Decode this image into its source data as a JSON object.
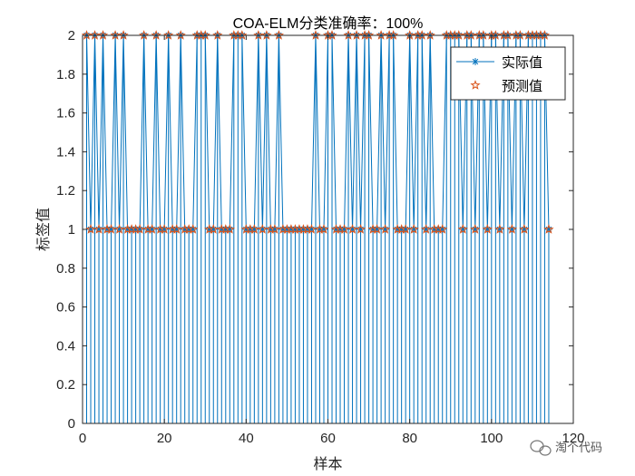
{
  "chart_data": {
    "type": "line",
    "title": "COA-ELM分类准确率：100%",
    "xlabel": "样本",
    "ylabel": "标签值",
    "xlim": [
      0,
      120
    ],
    "ylim": [
      0,
      2
    ],
    "xticks": [
      "0",
      "20",
      "40",
      "60",
      "80",
      "100",
      "120"
    ],
    "yticks": [
      "0",
      "0.2",
      "0.4",
      "0.6",
      "0.8",
      "1",
      "1.2",
      "1.4",
      "1.6",
      "1.8",
      "2"
    ],
    "grid": false,
    "legend_position": "top-right",
    "colors": {
      "actual": "#0072BD",
      "predicted": "#D95319"
    },
    "x": [
      1,
      2,
      3,
      4,
      5,
      6,
      7,
      8,
      9,
      10,
      11,
      12,
      13,
      14,
      15,
      16,
      17,
      18,
      19,
      20,
      21,
      22,
      23,
      24,
      25,
      26,
      27,
      28,
      29,
      30,
      31,
      32,
      33,
      34,
      35,
      36,
      37,
      38,
      39,
      40,
      41,
      42,
      43,
      44,
      45,
      46,
      47,
      48,
      49,
      50,
      51,
      52,
      53,
      54,
      55,
      56,
      57,
      58,
      59,
      60,
      61,
      62,
      63,
      64,
      65,
      66,
      67,
      68,
      69,
      70,
      71,
      72,
      73,
      74,
      75,
      76,
      77,
      78,
      79,
      80,
      81,
      82,
      83,
      84,
      85,
      86,
      87,
      88,
      89,
      90,
      91,
      92,
      93,
      94,
      95,
      96,
      97,
      98,
      99,
      100,
      101,
      102,
      103,
      104,
      105,
      106,
      107,
      108,
      109,
      110,
      111,
      112,
      113,
      114
    ],
    "series": [
      {
        "name": "实际值",
        "marker": "*",
        "values": [
          2,
          1,
          2,
          1,
          2,
          1,
          1,
          2,
          1,
          2,
          1,
          1,
          1,
          1,
          2,
          1,
          1,
          2,
          1,
          1,
          2,
          1,
          1,
          2,
          1,
          1,
          1,
          2,
          2,
          2,
          1,
          1,
          2,
          1,
          1,
          1,
          2,
          2,
          2,
          1,
          1,
          1,
          2,
          1,
          2,
          1,
          1,
          2,
          1,
          1,
          1,
          1,
          1,
          1,
          1,
          1,
          2,
          1,
          1,
          2,
          2,
          1,
          1,
          1,
          2,
          1,
          2,
          1,
          2,
          2,
          1,
          1,
          2,
          1,
          2,
          2,
          1,
          1,
          1,
          2,
          1,
          2,
          2,
          1,
          2,
          1,
          1,
          1,
          2,
          2,
          2,
          2,
          1,
          2,
          2,
          1,
          2,
          2,
          1,
          2,
          2,
          1,
          2,
          2,
          1,
          2,
          2,
          1,
          2,
          2,
          2,
          2,
          2,
          1
        ]
      },
      {
        "name": "预测值",
        "marker": "pentagram",
        "values": [
          2,
          1,
          2,
          1,
          2,
          1,
          1,
          2,
          1,
          2,
          1,
          1,
          1,
          1,
          2,
          1,
          1,
          2,
          1,
          1,
          2,
          1,
          1,
          2,
          1,
          1,
          1,
          2,
          2,
          2,
          1,
          1,
          2,
          1,
          1,
          1,
          2,
          2,
          2,
          1,
          1,
          1,
          2,
          1,
          2,
          1,
          1,
          2,
          1,
          1,
          1,
          1,
          1,
          1,
          1,
          1,
          2,
          1,
          1,
          2,
          2,
          1,
          1,
          1,
          2,
          1,
          2,
          1,
          2,
          2,
          1,
          1,
          2,
          1,
          2,
          2,
          1,
          1,
          1,
          2,
          1,
          2,
          2,
          1,
          2,
          1,
          1,
          1,
          2,
          2,
          2,
          2,
          1,
          2,
          2,
          1,
          2,
          2,
          1,
          2,
          2,
          1,
          2,
          2,
          1,
          2,
          2,
          1,
          2,
          2,
          2,
          2,
          2,
          1
        ]
      }
    ]
  },
  "watermark": {
    "icon": "wechat-icon",
    "text": "淘个代码"
  }
}
